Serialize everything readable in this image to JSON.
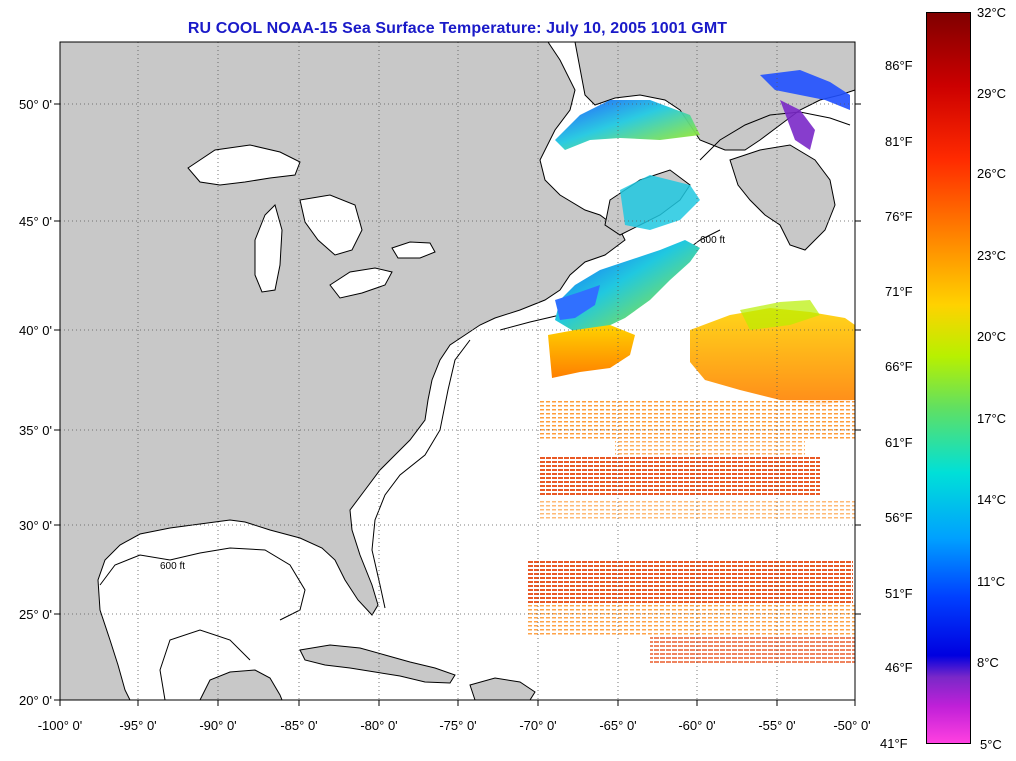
{
  "title": "RU COOL  NOAA-15  Sea Surface Temperature:  July 10, 2005 1001 GMT",
  "map": {
    "lon_range": [
      -100,
      -50
    ],
    "lat_range": [
      20,
      52.5
    ],
    "lon_ticks": [
      "-100° 0'",
      "-95° 0'",
      "-90° 0'",
      "-85° 0'",
      "-80° 0'",
      "-75° 0'",
      "-70° 0'",
      "-65° 0'",
      "-60° 0'",
      "-55° 0'",
      "-50° 0'"
    ],
    "lat_ticks": [
      "50° 0'",
      "45° 0'",
      "40° 0'",
      "35° 0'",
      "30° 0'",
      "25° 0'",
      "20° 0'"
    ],
    "isobath_label": "600 ft",
    "land_color": "#c8c8c8",
    "grid": true
  },
  "colorbar": {
    "fahrenheit": [
      "86°F",
      "81°F",
      "76°F",
      "71°F",
      "66°F",
      "61°F",
      "56°F",
      "51°F",
      "46°F",
      "41°F"
    ],
    "celsius": [
      "32°C",
      "29°C",
      "26°C",
      "23°C",
      "20°C",
      "17°C",
      "14°C",
      "11°C",
      "8°C",
      "5°C"
    ]
  }
}
